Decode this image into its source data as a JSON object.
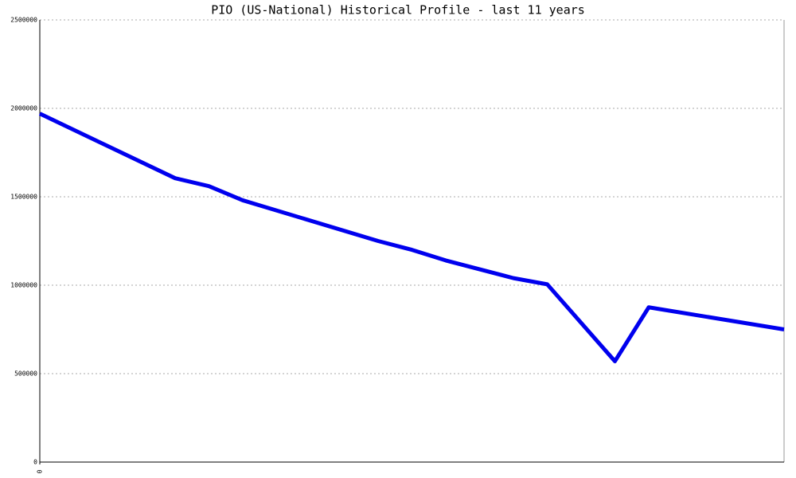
{
  "chart_data": {
    "type": "line",
    "title": "PIO (US-National) Historical Profile - last 11 years",
    "x": [
      0,
      2,
      2.5,
      3,
      5,
      5.5,
      6,
      7,
      7.5,
      8.5,
      9,
      11
    ],
    "series": [
      {
        "color": "#0000ee",
        "values": [
          1970000,
          1605000,
          1560000,
          1480000,
          1250000,
          1200000,
          1140000,
          1040000,
          1005000,
          570000,
          875000,
          750000
        ]
      }
    ],
    "xlim": [
      0,
      11
    ],
    "xticks": [
      0
    ],
    "ylim": [
      0,
      2500000
    ],
    "yticks": [
      0,
      500000,
      1000000,
      1500000,
      2000000,
      2500000
    ],
    "grid": true
  }
}
